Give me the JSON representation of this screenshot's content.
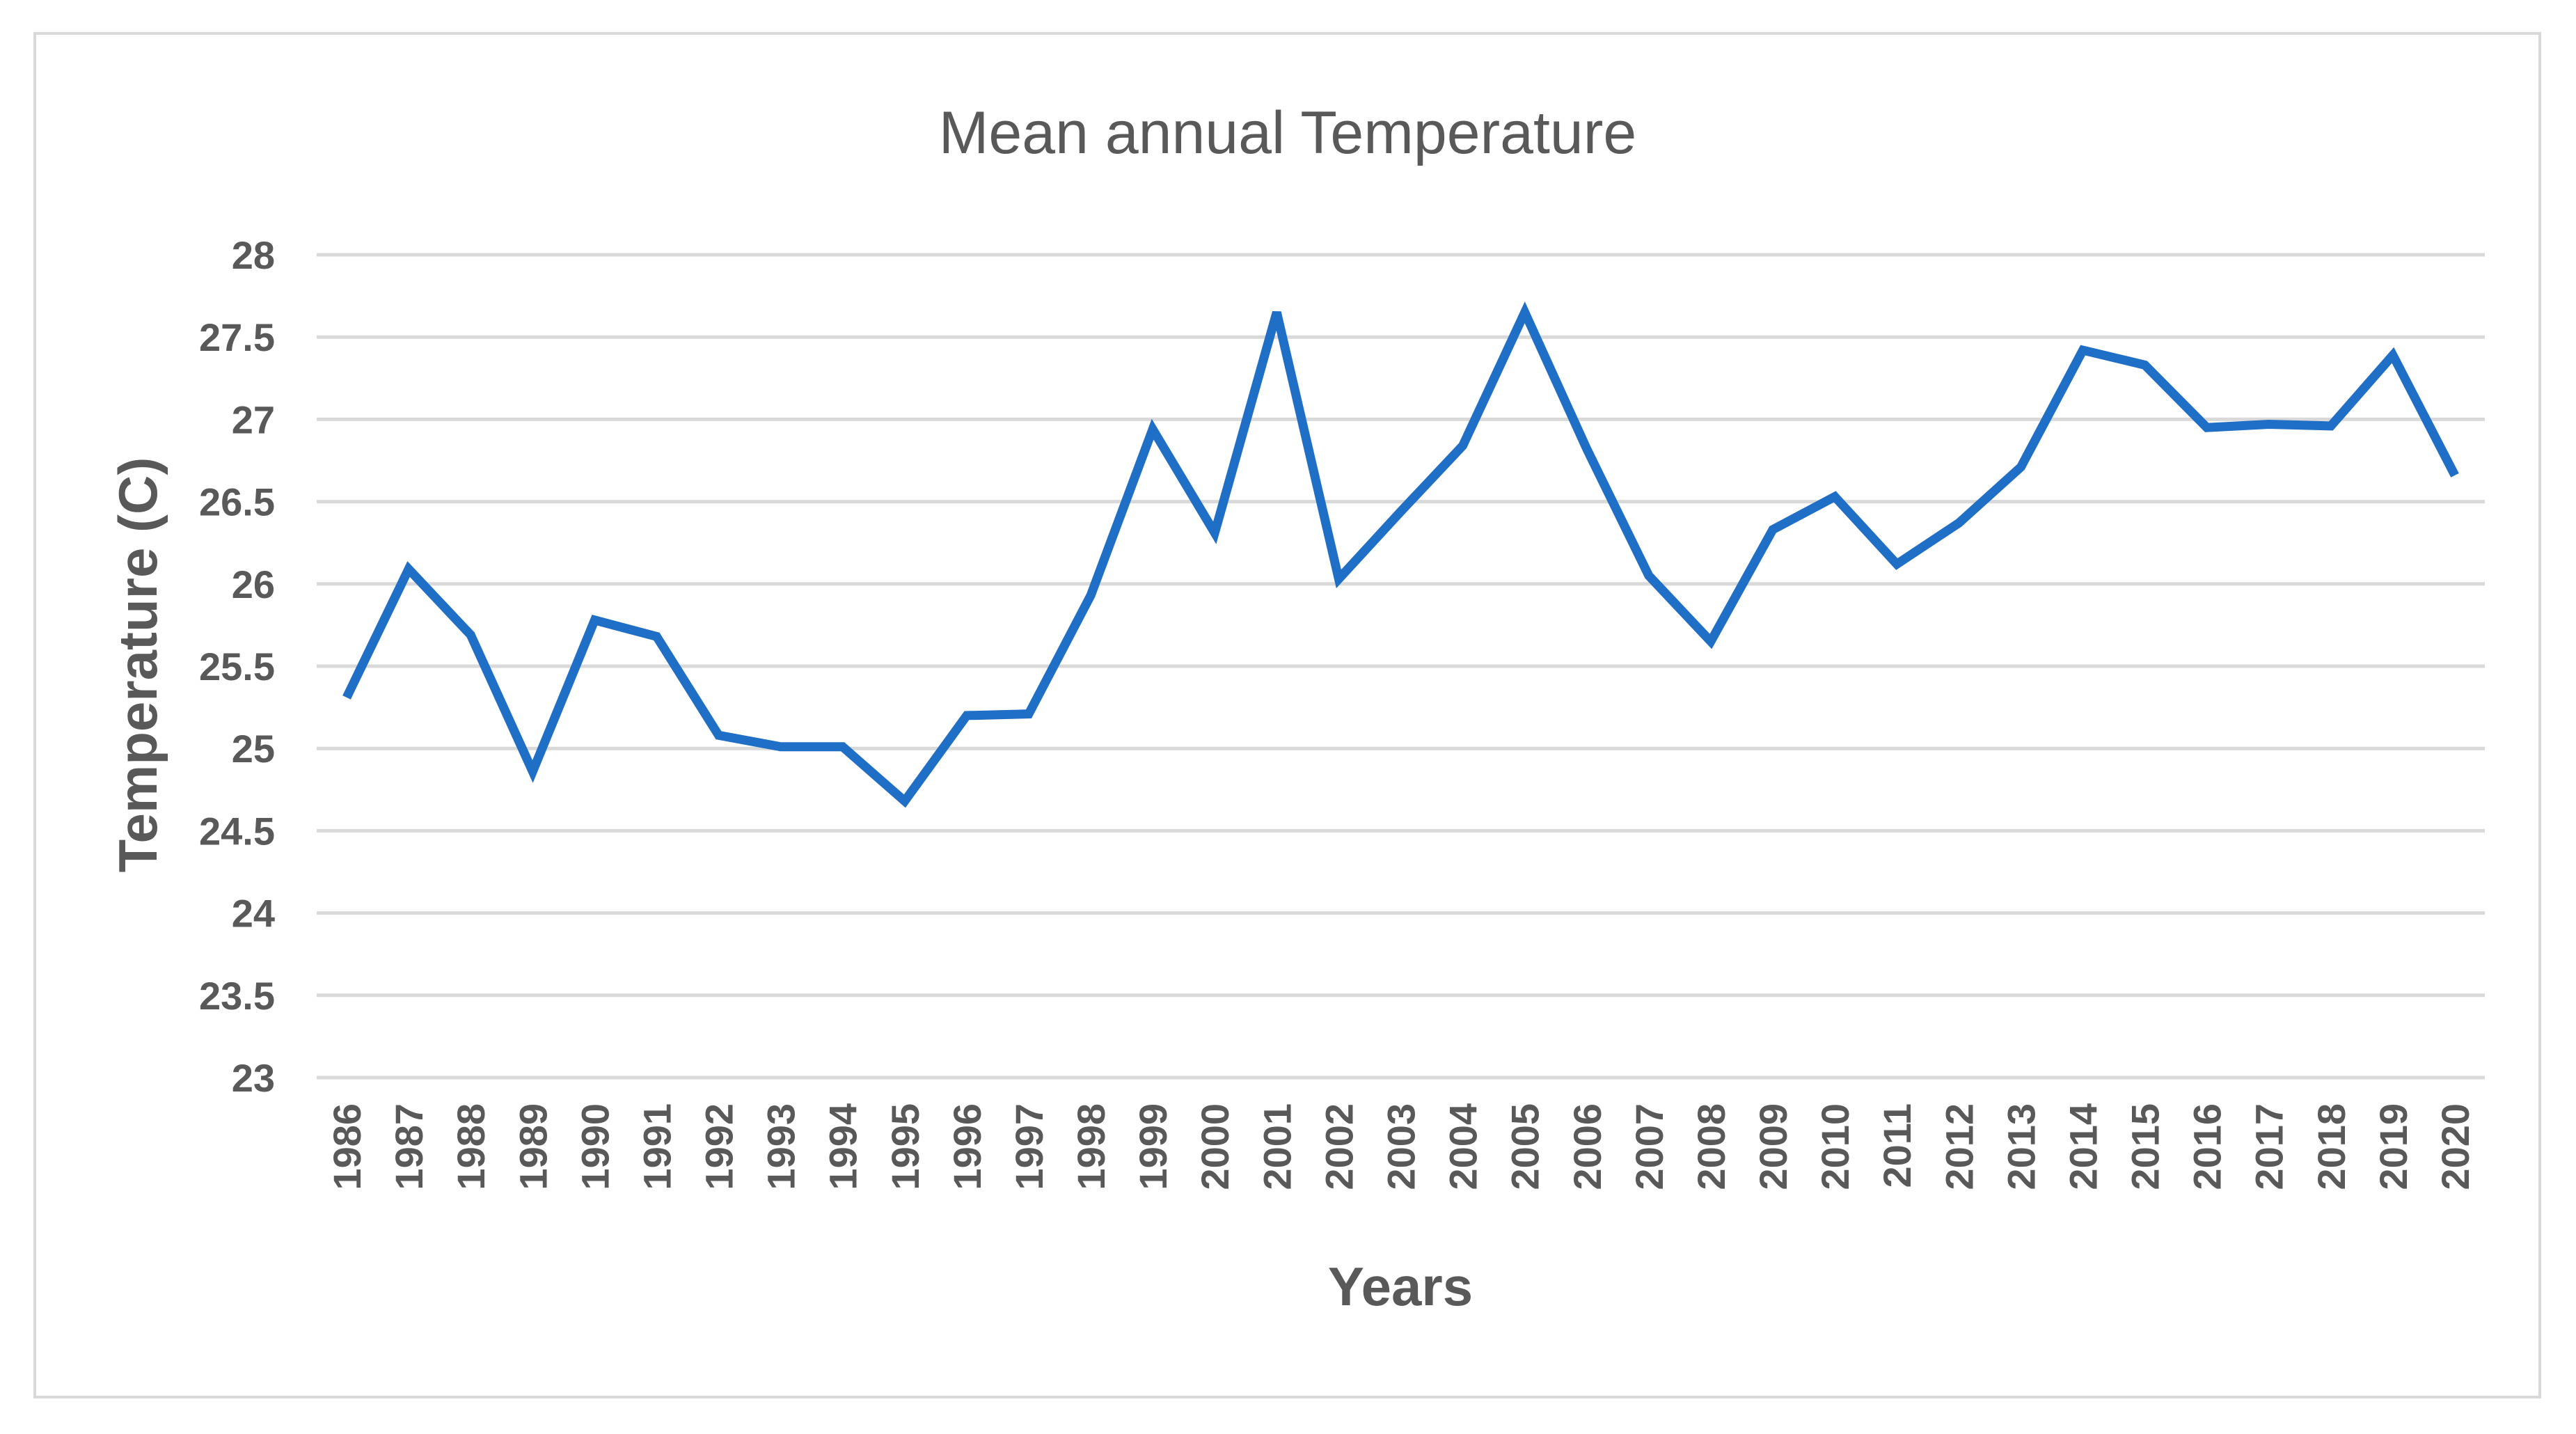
{
  "chart_data": {
    "type": "line",
    "title": "Mean annual Temperature",
    "xlabel": "Years",
    "ylabel": "Temperature (C)",
    "ylim": [
      23,
      28
    ],
    "yticks": [
      23,
      23.5,
      24,
      24.5,
      25,
      25.5,
      26,
      26.5,
      27,
      27.5,
      28
    ],
    "ytick_labels": [
      "23",
      "23.5",
      "24",
      "24.5",
      "25",
      "25.5",
      "26",
      "26.5",
      "27",
      "27.5",
      "28"
    ],
    "grid": true,
    "categories": [
      "1986",
      "1987",
      "1988",
      "1989",
      "1990",
      "1991",
      "1992",
      "1993",
      "1994",
      "1995",
      "1996",
      "1997",
      "1998",
      "1999",
      "2000",
      "2001",
      "2002",
      "2003",
      "2004",
      "2005",
      "2006",
      "2007",
      "2008",
      "2009",
      "2010",
      "2011",
      "2012",
      "2013",
      "2014",
      "2015",
      "2016",
      "2017",
      "2018",
      "2019",
      "2020"
    ],
    "series": [
      {
        "name": "Mean annual Temperature",
        "color": "#1f6fc6",
        "values": [
          25.31,
          26.09,
          25.69,
          24.86,
          25.78,
          25.68,
          25.08,
          25.01,
          25.01,
          24.68,
          25.2,
          25.21,
          25.93,
          26.94,
          26.31,
          27.65,
          26.03,
          26.44,
          26.84,
          27.65,
          26.82,
          26.05,
          25.65,
          26.33,
          26.53,
          26.12,
          26.37,
          26.71,
          27.42,
          27.33,
          26.95,
          26.97,
          26.96,
          27.39,
          26.66
        ]
      }
    ]
  }
}
